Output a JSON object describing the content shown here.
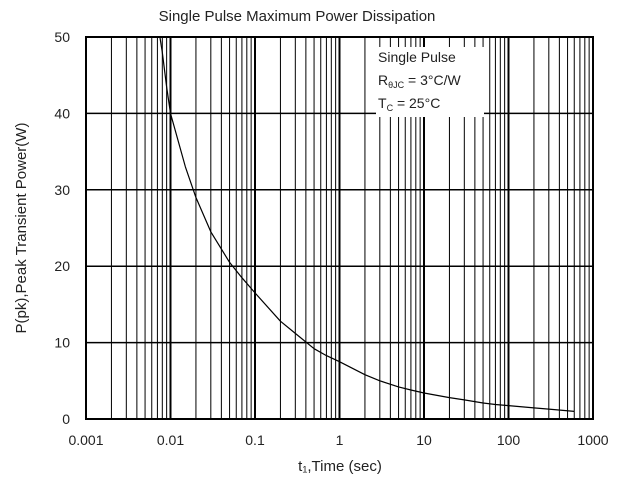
{
  "chart_data": {
    "type": "line",
    "title": "Single Pulse Maximum Power Dissipation",
    "xlabel": "t₁,Time (sec)",
    "ylabel": "P(pk),Peak Transient Power(W)",
    "x_scale": "log",
    "xlim": [
      0.001,
      1000
    ],
    "ylim": [
      0,
      50
    ],
    "x_ticks": [
      "0.001",
      "0.01",
      "0.1",
      "1",
      "10",
      "100",
      "1000"
    ],
    "y_ticks": [
      "0",
      "10",
      "20",
      "30",
      "40",
      "50"
    ],
    "grid": true,
    "annotations": {
      "line1": "Single Pulse",
      "line2_main": "R",
      "line2_sub": "θJC",
      "line2_rest": " = 3°C/W",
      "line3_main": "T",
      "line3_sub": "C",
      "line3_rest": " = 25°C"
    },
    "series": [
      {
        "x": [
          0.0075,
          0.008,
          0.009,
          0.01,
          0.015,
          0.02,
          0.03,
          0.05,
          0.07,
          0.1,
          0.2,
          0.3,
          0.5,
          0.7,
          1,
          2,
          3,
          5,
          7,
          10,
          20,
          30,
          50,
          70,
          100,
          200,
          300,
          600
        ],
        "y": [
          50,
          48,
          43.5,
          40,
          33,
          29,
          24.5,
          20.5,
          18.5,
          16.5,
          12.8,
          11.2,
          9.2,
          8.3,
          7.5,
          5.8,
          5.0,
          4.2,
          3.8,
          3.4,
          2.8,
          2.5,
          2.1,
          1.9,
          1.75,
          1.45,
          1.3,
          1.0
        ]
      }
    ]
  }
}
